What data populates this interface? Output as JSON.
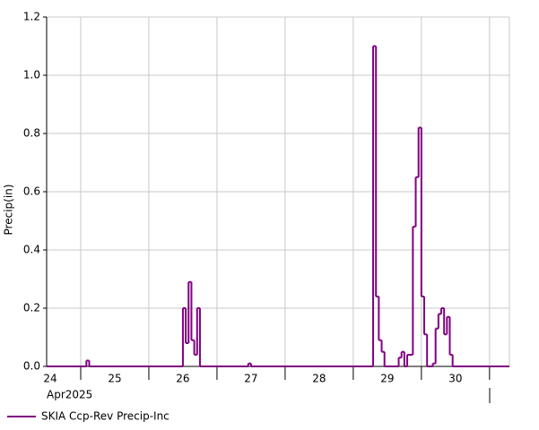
{
  "chart_data": {
    "type": "step",
    "y_label": "Precip(in)",
    "x_sublabel": "Apr2025",
    "xlim": [
      12,
      175
    ],
    "ylim": [
      0,
      1.2
    ],
    "xticks": [
      {
        "value": 12,
        "label": "24"
      },
      {
        "value": 36,
        "label": "25"
      },
      {
        "value": 60,
        "label": "26"
      },
      {
        "value": 84,
        "label": "27"
      },
      {
        "value": 108,
        "label": "28"
      },
      {
        "value": 132,
        "label": "29"
      },
      {
        "value": 156,
        "label": "30"
      }
    ],
    "xgrid": [
      24,
      48,
      72,
      96,
      120,
      144,
      168
    ],
    "yticks": [
      {
        "value": 0,
        "label": "0.0"
      },
      0.2,
      0.4,
      0.6,
      0.8,
      {
        "value": 1,
        "label": "1.0"
      },
      1.2
    ],
    "grid": true,
    "legend": "bottom",
    "series": [
      {
        "name": "SKIA Ccp-Rev Precip-Inc",
        "color": "#800080",
        "x": [
          12,
          26,
          27,
          60,
          61,
          62,
          63,
          64,
          65,
          66,
          83,
          84,
          127,
          128,
          129,
          130,
          131,
          136,
          137,
          138,
          139,
          141,
          142,
          143,
          144,
          145,
          146,
          148,
          149,
          150,
          151,
          152,
          153,
          154,
          155
        ],
        "values": [
          0,
          0.02,
          0,
          0.2,
          0.08,
          0.29,
          0.09,
          0.04,
          0.2,
          0,
          0.01,
          0,
          1.1,
          0.24,
          0.09,
          0.05,
          0,
          0.03,
          0.05,
          0,
          0.04,
          0.48,
          0.65,
          0.82,
          0.24,
          0.11,
          0,
          0.01,
          0.13,
          0.18,
          0.2,
          0.11,
          0.17,
          0.04,
          0
        ]
      }
    ]
  }
}
